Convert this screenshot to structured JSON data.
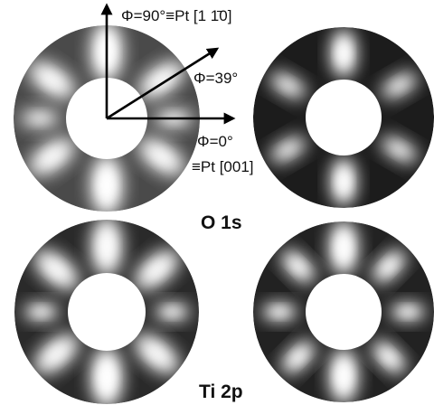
{
  "labels": {
    "phi90": "Φ=90°≡Pt [1 1̄0]",
    "phi39": "Φ=39°",
    "phi0": "Φ=0°",
    "phi0_axis": "≡Pt [001]"
  },
  "panels": {
    "top_row": "O 1s",
    "bottom_row": "Ti 2p"
  }
}
